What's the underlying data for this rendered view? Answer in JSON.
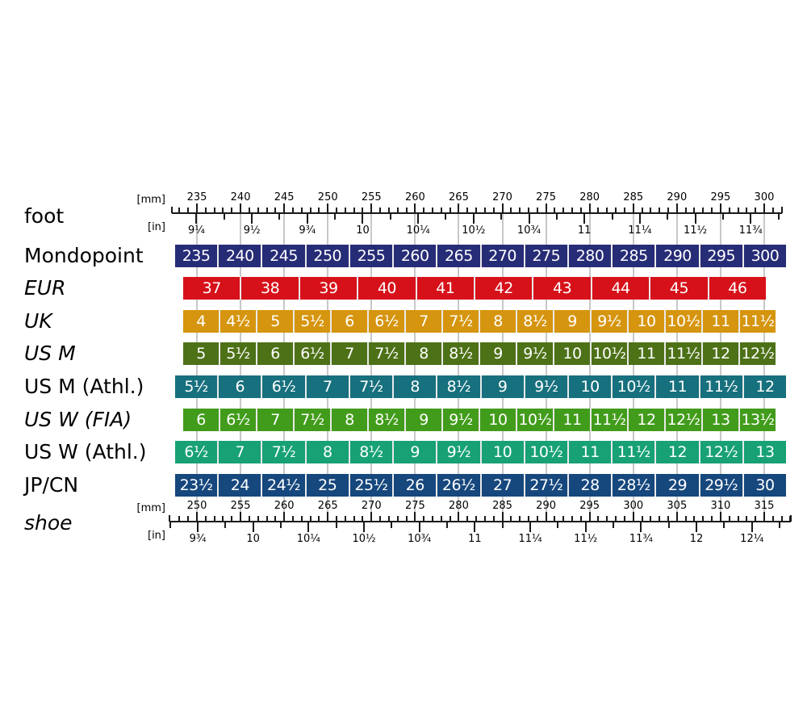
{
  "colors": {
    "background": "#ffffff",
    "gridline": "#c8c8c8",
    "cell_divider": "#e9e9e9",
    "cell_text": "#ffffff",
    "ruler": "#1a1a1a"
  },
  "chart_data": {
    "type": "table",
    "title": "",
    "description": "Shoe size conversion chart aligning size systems against foot length (top ruler) and shoe length (bottom ruler)",
    "foot_scale": {
      "label": "foot",
      "mm_unit": "[mm]",
      "in_unit": "[in]",
      "mm_axis": {
        "min": 235,
        "max": 300,
        "step": 5
      },
      "mm_ticks": [
        "235",
        "240",
        "245",
        "250",
        "255",
        "260",
        "265",
        "270",
        "275",
        "280",
        "285",
        "290",
        "295",
        "300"
      ],
      "in_ticks": [
        "9¼",
        "9½",
        "9¾",
        "10",
        "10¼",
        "10½",
        "10¾",
        "11",
        "11¼",
        "11½",
        "11¾"
      ]
    },
    "shoe_scale": {
      "label": "shoe",
      "mm_unit": "[mm]",
      "in_unit": "[in]",
      "mm_axis": {
        "min": 250,
        "max": 315,
        "step": 5
      },
      "mm_ticks": [
        "250",
        "255",
        "260",
        "265",
        "270",
        "275",
        "280",
        "285",
        "290",
        "295",
        "300",
        "305",
        "310",
        "315"
      ],
      "in_ticks": [
        "9¾",
        "10",
        "10¼",
        "10½",
        "10¾",
        "11",
        "11¼",
        "11½",
        "11¾",
        "12",
        "12¼"
      ]
    },
    "series": [
      {
        "label": "Mondopoint",
        "italic": false,
        "color": "#272c77",
        "alignment": "wide",
        "values": [
          "235",
          "240",
          "245",
          "250",
          "255",
          "260",
          "265",
          "270",
          "275",
          "280",
          "285",
          "290",
          "295",
          "300"
        ]
      },
      {
        "label": "EUR",
        "italic": true,
        "color": "#d6111a",
        "alignment": "eur",
        "values": [
          "37",
          "38",
          "39",
          "40",
          "41",
          "42",
          "43",
          "44",
          "45",
          "46"
        ]
      },
      {
        "label": "UK",
        "italic": true,
        "color": "#d6950f",
        "alignment": "narrow",
        "values": [
          "4",
          "4½",
          "5",
          "5½",
          "6",
          "6½",
          "7",
          "7½",
          "8",
          "8½",
          "9",
          "9½",
          "10",
          "10½",
          "11",
          "11½"
        ]
      },
      {
        "label": "US M",
        "italic": true,
        "color": "#4d7117",
        "alignment": "narrow",
        "values": [
          "5",
          "5½",
          "6",
          "6½",
          "7",
          "7½",
          "8",
          "8½",
          "9",
          "9½",
          "10",
          "10½",
          "11",
          "11½",
          "12",
          "12½"
        ]
      },
      {
        "label": "US M (Athl.)",
        "italic": false,
        "color": "#17707d",
        "alignment": "wide",
        "values": [
          "5½",
          "6",
          "6½",
          "7",
          "7½",
          "8",
          "8½",
          "9",
          "9½",
          "10",
          "10½",
          "11",
          "11½",
          "12"
        ]
      },
      {
        "label": "US W (FIA)",
        "italic": true,
        "color": "#429c1b",
        "alignment": "narrow",
        "values": [
          "6",
          "6½",
          "7",
          "7½",
          "8",
          "8½",
          "9",
          "9½",
          "10",
          "10½",
          "11",
          "11½",
          "12",
          "12½",
          "13",
          "13½"
        ]
      },
      {
        "label": "US W (Athl.)",
        "italic": false,
        "color": "#17a175",
        "alignment": "wide",
        "values": [
          "6½",
          "7",
          "7½",
          "8",
          "8½",
          "9",
          "9½",
          "10",
          "10½",
          "11",
          "11½",
          "12",
          "12½",
          "13"
        ]
      },
      {
        "label": "JP/CN",
        "italic": false,
        "color": "#16477d",
        "alignment": "wide",
        "values": [
          "23½",
          "24",
          "24½",
          "25",
          "25½",
          "26",
          "26½",
          "27",
          "27½",
          "28",
          "28½",
          "29",
          "29½",
          "30"
        ]
      }
    ]
  }
}
